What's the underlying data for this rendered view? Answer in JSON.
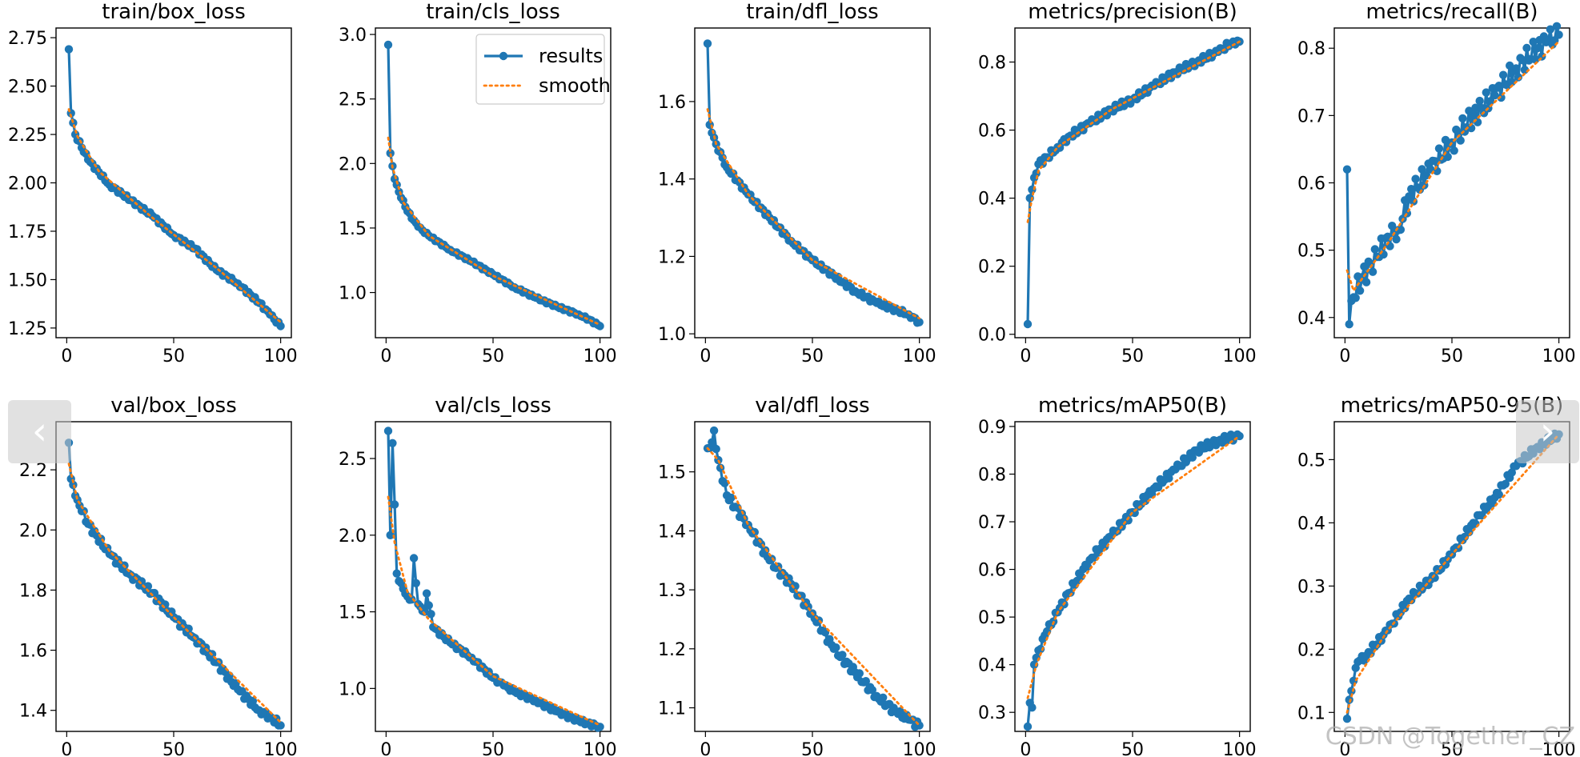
{
  "carousel": {
    "prev_icon": "‹",
    "next_icon": "›"
  },
  "watermark": "CSDN @Together_CZ",
  "legend": {
    "results": "results",
    "smooth": "smooth"
  },
  "colors": {
    "results": "#1f77b4",
    "smooth": "#ff7f0e"
  },
  "chart_data": [
    {
      "type": "line",
      "title": "train/box_loss",
      "xlabel": "",
      "ylabel": "",
      "xlim": [
        -5,
        105
      ],
      "ylim": [
        1.2,
        2.8
      ],
      "xticks": [
        0,
        50,
        100
      ],
      "xtick_labels": [
        "0",
        "50",
        "100"
      ],
      "yticks": [
        1.25,
        1.5,
        1.75,
        2.0,
        2.25,
        2.5,
        2.75
      ],
      "ytick_labels": [
        "1.25",
        "1.50",
        "1.75",
        "2.00",
        "2.25",
        "2.50",
        "2.75"
      ],
      "anchors": [
        [
          1,
          2.69
        ],
        [
          2,
          2.36
        ],
        [
          4,
          2.25
        ],
        [
          10,
          2.12
        ],
        [
          20,
          1.99
        ],
        [
          30,
          1.91
        ],
        [
          40,
          1.83
        ],
        [
          50,
          1.73
        ],
        [
          60,
          1.66
        ],
        [
          70,
          1.55
        ],
        [
          80,
          1.48
        ],
        [
          90,
          1.38
        ],
        [
          95,
          1.32
        ],
        [
          100,
          1.26
        ]
      ],
      "smooth_anchors": [
        [
          1,
          2.38
        ],
        [
          5,
          2.24
        ],
        [
          15,
          2.06
        ],
        [
          40,
          1.82
        ],
        [
          70,
          1.56
        ],
        [
          100,
          1.28
        ]
      ],
      "noise": 0.01
    },
    {
      "type": "line",
      "title": "train/cls_loss",
      "xlabel": "",
      "ylabel": "",
      "xlim": [
        -5,
        105
      ],
      "ylim": [
        0.65,
        3.05
      ],
      "xticks": [
        0,
        50,
        100
      ],
      "xtick_labels": [
        "0",
        "50",
        "100"
      ],
      "yticks": [
        1.0,
        1.5,
        2.0,
        2.5,
        3.0
      ],
      "ytick_labels": [
        "1.0",
        "1.5",
        "2.0",
        "2.5",
        "3.0"
      ],
      "anchors": [
        [
          1,
          2.92
        ],
        [
          2,
          2.08
        ],
        [
          3,
          1.98
        ],
        [
          4,
          1.88
        ],
        [
          6,
          1.78
        ],
        [
          10,
          1.63
        ],
        [
          15,
          1.51
        ],
        [
          20,
          1.44
        ],
        [
          30,
          1.33
        ],
        [
          40,
          1.24
        ],
        [
          50,
          1.14
        ],
        [
          60,
          1.04
        ],
        [
          70,
          0.96
        ],
        [
          80,
          0.89
        ],
        [
          90,
          0.83
        ],
        [
          95,
          0.79
        ],
        [
          100,
          0.74
        ]
      ],
      "smooth_anchors": [
        [
          1,
          2.2
        ],
        [
          3,
          1.97
        ],
        [
          8,
          1.7
        ],
        [
          20,
          1.44
        ],
        [
          50,
          1.13
        ],
        [
          100,
          0.75
        ]
      ],
      "noise": 0.01
    },
    {
      "type": "line",
      "title": "train/dfl_loss",
      "xlabel": "",
      "ylabel": "",
      "xlim": [
        -5,
        105
      ],
      "ylim": [
        0.99,
        1.79
      ],
      "xticks": [
        0,
        50,
        100
      ],
      "xtick_labels": [
        "0",
        "50",
        "100"
      ],
      "yticks": [
        1.0,
        1.2,
        1.4,
        1.6
      ],
      "ytick_labels": [
        "1.0",
        "1.2",
        "1.4",
        "1.6"
      ],
      "anchors": [
        [
          1,
          1.75
        ],
        [
          2,
          1.54
        ],
        [
          5,
          1.49
        ],
        [
          10,
          1.43
        ],
        [
          20,
          1.36
        ],
        [
          30,
          1.3
        ],
        [
          40,
          1.24
        ],
        [
          50,
          1.19
        ],
        [
          60,
          1.15
        ],
        [
          70,
          1.11
        ],
        [
          80,
          1.08
        ],
        [
          90,
          1.06
        ],
        [
          95,
          1.05
        ],
        [
          100,
          1.03
        ]
      ],
      "smooth_anchors": [
        [
          1,
          1.58
        ],
        [
          5,
          1.49
        ],
        [
          20,
          1.36
        ],
        [
          50,
          1.19
        ],
        [
          100,
          1.04
        ]
      ],
      "noise": 0.006
    },
    {
      "type": "line",
      "title": "metrics/precision(B)",
      "xlabel": "",
      "ylabel": "",
      "xlim": [
        -5,
        105
      ],
      "ylim": [
        -0.01,
        0.9
      ],
      "xticks": [
        0,
        50,
        100
      ],
      "xtick_labels": [
        "0",
        "50",
        "100"
      ],
      "yticks": [
        0.0,
        0.2,
        0.4,
        0.6,
        0.8
      ],
      "ytick_labels": [
        "0.0",
        "0.2",
        "0.4",
        "0.6",
        "0.8"
      ],
      "anchors": [
        [
          1,
          0.03
        ],
        [
          2,
          0.4
        ],
        [
          4,
          0.46
        ],
        [
          6,
          0.5
        ],
        [
          10,
          0.52
        ],
        [
          15,
          0.55
        ],
        [
          20,
          0.58
        ],
        [
          30,
          0.62
        ],
        [
          40,
          0.66
        ],
        [
          50,
          0.69
        ],
        [
          60,
          0.73
        ],
        [
          70,
          0.77
        ],
        [
          80,
          0.8
        ],
        [
          90,
          0.83
        ],
        [
          97,
          0.86
        ],
        [
          100,
          0.86
        ]
      ],
      "smooth_anchors": [
        [
          1,
          0.33
        ],
        [
          3,
          0.4
        ],
        [
          6,
          0.48
        ],
        [
          15,
          0.55
        ],
        [
          40,
          0.66
        ],
        [
          100,
          0.86
        ]
      ],
      "noise": 0.01
    },
    {
      "type": "line",
      "title": "metrics/recall(B)",
      "xlabel": "",
      "ylabel": "",
      "xlim": [
        -5,
        105
      ],
      "ylim": [
        0.37,
        0.83
      ],
      "xticks": [
        0,
        50,
        100
      ],
      "xtick_labels": [
        "0",
        "50",
        "100"
      ],
      "yticks": [
        0.4,
        0.5,
        0.6,
        0.7,
        0.8
      ],
      "ytick_labels": [
        "0.4",
        "0.5",
        "0.6",
        "0.7",
        "0.8"
      ],
      "anchors": [
        [
          1,
          0.62
        ],
        [
          2,
          0.39
        ],
        [
          4,
          0.43
        ],
        [
          8,
          0.46
        ],
        [
          15,
          0.49
        ],
        [
          20,
          0.52
        ],
        [
          25,
          0.53
        ],
        [
          30,
          0.58
        ],
        [
          40,
          0.62
        ],
        [
          50,
          0.66
        ],
        [
          60,
          0.7
        ],
        [
          70,
          0.73
        ],
        [
          80,
          0.77
        ],
        [
          90,
          0.8
        ],
        [
          95,
          0.81
        ],
        [
          100,
          0.82
        ]
      ],
      "smooth_anchors": [
        [
          1,
          0.47
        ],
        [
          4,
          0.44
        ],
        [
          20,
          0.51
        ],
        [
          50,
          0.66
        ],
        [
          100,
          0.81
        ]
      ],
      "noise": 0.018
    },
    {
      "type": "line",
      "title": "val/box_loss",
      "xlabel": "",
      "ylabel": "",
      "xlim": [
        -5,
        105
      ],
      "ylim": [
        1.33,
        2.36
      ],
      "xticks": [
        0,
        50,
        100
      ],
      "xtick_labels": [
        "0",
        "50",
        "100"
      ],
      "yticks": [
        1.4,
        1.6,
        1.8,
        2.0,
        2.2
      ],
      "ytick_labels": [
        "1.4",
        "1.6",
        "1.8",
        "2.0",
        "2.2"
      ],
      "anchors": [
        [
          1,
          2.29
        ],
        [
          2,
          2.17
        ],
        [
          5,
          2.1
        ],
        [
          10,
          2.02
        ],
        [
          20,
          1.92
        ],
        [
          30,
          1.85
        ],
        [
          40,
          1.79
        ],
        [
          50,
          1.71
        ],
        [
          60,
          1.64
        ],
        [
          70,
          1.56
        ],
        [
          80,
          1.47
        ],
        [
          90,
          1.4
        ],
        [
          95,
          1.38
        ],
        [
          100,
          1.35
        ]
      ],
      "smooth_anchors": [
        [
          1,
          2.22
        ],
        [
          5,
          2.1
        ],
        [
          20,
          1.93
        ],
        [
          50,
          1.71
        ],
        [
          100,
          1.36
        ]
      ],
      "noise": 0.012
    },
    {
      "type": "line",
      "title": "val/cls_loss",
      "xlabel": "",
      "ylabel": "",
      "xlim": [
        -5,
        105
      ],
      "ylim": [
        0.72,
        2.74
      ],
      "xticks": [
        0,
        50,
        100
      ],
      "xtick_labels": [
        "0",
        "50",
        "100"
      ],
      "yticks": [
        1.0,
        1.5,
        2.0,
        2.5
      ],
      "ytick_labels": [
        "1.0",
        "1.5",
        "2.0",
        "2.5"
      ],
      "anchors": [
        [
          1,
          2.68
        ],
        [
          2,
          2.0
        ],
        [
          3,
          2.6
        ],
        [
          4,
          2.2
        ],
        [
          5,
          1.75
        ],
        [
          6,
          1.7
        ],
        [
          8,
          1.65
        ],
        [
          10,
          1.6
        ],
        [
          12,
          1.58
        ],
        [
          13,
          1.85
        ],
        [
          15,
          1.55
        ],
        [
          18,
          1.5
        ],
        [
          19,
          1.62
        ],
        [
          22,
          1.4
        ],
        [
          30,
          1.3
        ],
        [
          40,
          1.2
        ],
        [
          50,
          1.07
        ],
        [
          55,
          1.02
        ],
        [
          60,
          0.98
        ],
        [
          70,
          0.92
        ],
        [
          80,
          0.85
        ],
        [
          90,
          0.79
        ],
        [
          100,
          0.75
        ]
      ],
      "smooth_anchors": [
        [
          1,
          2.25
        ],
        [
          4,
          1.95
        ],
        [
          10,
          1.63
        ],
        [
          20,
          1.45
        ],
        [
          50,
          1.08
        ],
        [
          100,
          0.76
        ]
      ],
      "noise": 0.015
    },
    {
      "type": "line",
      "title": "val/dfl_loss",
      "xlabel": "",
      "ylabel": "",
      "xlim": [
        -5,
        105
      ],
      "ylim": [
        1.06,
        1.585
      ],
      "xticks": [
        0,
        50,
        100
      ],
      "xtick_labels": [
        "0",
        "50",
        "100"
      ],
      "yticks": [
        1.1,
        1.2,
        1.3,
        1.4,
        1.5
      ],
      "ytick_labels": [
        "1.1",
        "1.2",
        "1.3",
        "1.4",
        "1.5"
      ],
      "anchors": [
        [
          1,
          1.54
        ],
        [
          3,
          1.55
        ],
        [
          4,
          1.57
        ],
        [
          6,
          1.52
        ],
        [
          10,
          1.46
        ],
        [
          20,
          1.41
        ],
        [
          30,
          1.35
        ],
        [
          40,
          1.31
        ],
        [
          50,
          1.26
        ],
        [
          60,
          1.2
        ],
        [
          70,
          1.16
        ],
        [
          80,
          1.12
        ],
        [
          90,
          1.09
        ],
        [
          95,
          1.08
        ],
        [
          100,
          1.07
        ]
      ],
      "smooth_anchors": [
        [
          1,
          1.54
        ],
        [
          6,
          1.52
        ],
        [
          20,
          1.41
        ],
        [
          50,
          1.26
        ],
        [
          100,
          1.07
        ]
      ],
      "noise": 0.007
    },
    {
      "type": "line",
      "title": "metrics/mAP50(B)",
      "xlabel": "",
      "ylabel": "",
      "xlim": [
        -5,
        105
      ],
      "ylim": [
        0.26,
        0.91
      ],
      "xticks": [
        0,
        50,
        100
      ],
      "xtick_labels": [
        "0",
        "50",
        "100"
      ],
      "yticks": [
        0.3,
        0.4,
        0.5,
        0.6,
        0.7,
        0.8,
        0.9
      ],
      "ytick_labels": [
        "0.3",
        "0.4",
        "0.5",
        "0.6",
        "0.7",
        "0.8",
        "0.9"
      ],
      "anchors": [
        [
          1,
          0.27
        ],
        [
          2,
          0.32
        ],
        [
          3,
          0.31
        ],
        [
          4,
          0.4
        ],
        [
          6,
          0.43
        ],
        [
          10,
          0.47
        ],
        [
          15,
          0.51
        ],
        [
          20,
          0.55
        ],
        [
          30,
          0.62
        ],
        [
          40,
          0.67
        ],
        [
          50,
          0.72
        ],
        [
          60,
          0.77
        ],
        [
          70,
          0.81
        ],
        [
          80,
          0.85
        ],
        [
          90,
          0.87
        ],
        [
          100,
          0.88
        ]
      ],
      "smooth_anchors": [
        [
          1,
          0.33
        ],
        [
          5,
          0.4
        ],
        [
          15,
          0.51
        ],
        [
          50,
          0.72
        ],
        [
          100,
          0.88
        ]
      ],
      "noise": 0.008
    },
    {
      "type": "line",
      "title": "metrics/mAP50-95(B)",
      "xlabel": "",
      "ylabel": "",
      "xlim": [
        -5,
        105
      ],
      "ylim": [
        0.07,
        0.56
      ],
      "xticks": [
        0,
        50,
        100
      ],
      "xtick_labels": [
        "0",
        "50",
        "100"
      ],
      "yticks": [
        0.1,
        0.2,
        0.3,
        0.4,
        0.5
      ],
      "ytick_labels": [
        "0.1",
        "0.2",
        "0.3",
        "0.4",
        "0.5"
      ],
      "anchors": [
        [
          1,
          0.09
        ],
        [
          2,
          0.12
        ],
        [
          4,
          0.15
        ],
        [
          6,
          0.18
        ],
        [
          10,
          0.19
        ],
        [
          20,
          0.23
        ],
        [
          30,
          0.28
        ],
        [
          40,
          0.31
        ],
        [
          50,
          0.35
        ],
        [
          60,
          0.4
        ],
        [
          70,
          0.44
        ],
        [
          80,
          0.49
        ],
        [
          90,
          0.52
        ],
        [
          100,
          0.54
        ]
      ],
      "smooth_anchors": [
        [
          1,
          0.1
        ],
        [
          5,
          0.15
        ],
        [
          20,
          0.23
        ],
        [
          50,
          0.35
        ],
        [
          100,
          0.54
        ]
      ],
      "noise": 0.006
    }
  ]
}
